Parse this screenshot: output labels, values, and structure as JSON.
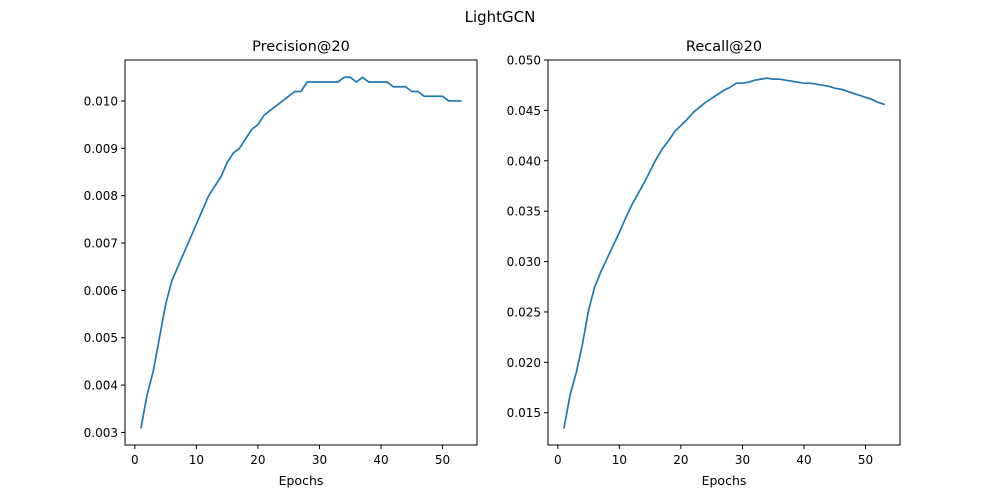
{
  "suptitle": "LightGCN",
  "series_color": "#1f77b4",
  "chart_data": [
    {
      "type": "line",
      "title": "Precision@20",
      "xlabel": "Epochs",
      "ylabel": "",
      "xlim": [
        -1.6,
        55.6
      ],
      "ylim": [
        0.002735,
        0.010865
      ],
      "xticks": [
        0,
        10,
        20,
        30,
        40,
        50
      ],
      "xtick_labels": [
        "0",
        "10",
        "20",
        "30",
        "40",
        "50"
      ],
      "yticks": [
        0.003,
        0.004,
        0.005,
        0.006,
        0.007,
        0.008,
        0.009,
        0.01
      ],
      "ytick_labels": [
        "0.003",
        "0.004",
        "0.005",
        "0.006",
        "0.007",
        "0.008",
        "0.009",
        "0.010"
      ],
      "grid": false,
      "series": [
        {
          "x": [
            1,
            2,
            3,
            4,
            5,
            6,
            7,
            8,
            9,
            10,
            11,
            12,
            13,
            14,
            15,
            16,
            17,
            18,
            19,
            20,
            21,
            22,
            23,
            24,
            25,
            26,
            27,
            28,
            29,
            30,
            31,
            32,
            33,
            34,
            35,
            36,
            37,
            38,
            39,
            40,
            41,
            42,
            43,
            44,
            45,
            46,
            47,
            48,
            49,
            50,
            51,
            52,
            53
          ],
          "values": [
            0.0031,
            0.0038,
            0.0043,
            0.005,
            0.0057,
            0.0062,
            0.0065,
            0.0068,
            0.0071,
            0.0074,
            0.0077,
            0.008,
            0.0082,
            0.0084,
            0.0087,
            0.0089,
            0.009,
            0.0092,
            0.0094,
            0.0095,
            0.0097,
            0.0098,
            0.0099,
            0.01,
            0.0101,
            0.0102,
            0.0102,
            0.0104,
            0.0104,
            0.0104,
            0.0104,
            0.0104,
            0.0104,
            0.0105,
            0.0105,
            0.0104,
            0.0105,
            0.0104,
            0.0104,
            0.0104,
            0.0104,
            0.0103,
            0.0103,
            0.0103,
            0.0102,
            0.0102,
            0.0101,
            0.0101,
            0.0101,
            0.0101,
            0.01,
            0.01,
            0.01
          ]
        }
      ]
    },
    {
      "type": "line",
      "title": "Recall@20",
      "xlabel": "Epochs",
      "ylabel": "",
      "xlim": [
        -1.6,
        55.6
      ],
      "ylim": [
        0.0118,
        0.05
      ],
      "xticks": [
        0,
        10,
        20,
        30,
        40,
        50
      ],
      "xtick_labels": [
        "0",
        "10",
        "20",
        "30",
        "40",
        "50"
      ],
      "yticks": [
        0.015,
        0.02,
        0.025,
        0.03,
        0.035,
        0.04,
        0.045,
        0.05
      ],
      "ytick_labels": [
        "0.015",
        "0.020",
        "0.025",
        "0.030",
        "0.035",
        "0.040",
        "0.045",
        "0.050"
      ],
      "grid": false,
      "series": [
        {
          "x": [
            1,
            2,
            3,
            4,
            5,
            6,
            7,
            8,
            9,
            10,
            11,
            12,
            13,
            14,
            15,
            16,
            17,
            18,
            19,
            20,
            21,
            22,
            23,
            24,
            25,
            26,
            27,
            28,
            29,
            30,
            31,
            32,
            33,
            34,
            35,
            36,
            37,
            38,
            39,
            40,
            41,
            42,
            43,
            44,
            45,
            46,
            47,
            48,
            49,
            50,
            51,
            52,
            53
          ],
          "values": [
            0.0135,
            0.0168,
            0.019,
            0.0218,
            0.0252,
            0.0275,
            0.029,
            0.0303,
            0.0316,
            0.0329,
            0.0343,
            0.0356,
            0.0367,
            0.0378,
            0.039,
            0.0402,
            0.0412,
            0.042,
            0.0429,
            0.0435,
            0.0441,
            0.0448,
            0.0453,
            0.0458,
            0.0462,
            0.0466,
            0.047,
            0.0473,
            0.0477,
            0.0477,
            0.0478,
            0.048,
            0.0481,
            0.0482,
            0.0481,
            0.0481,
            0.048,
            0.0479,
            0.0478,
            0.0477,
            0.0477,
            0.0476,
            0.0475,
            0.0474,
            0.0472,
            0.0471,
            0.0469,
            0.0467,
            0.0465,
            0.0463,
            0.0461,
            0.0458,
            0.0456
          ]
        }
      ]
    }
  ]
}
